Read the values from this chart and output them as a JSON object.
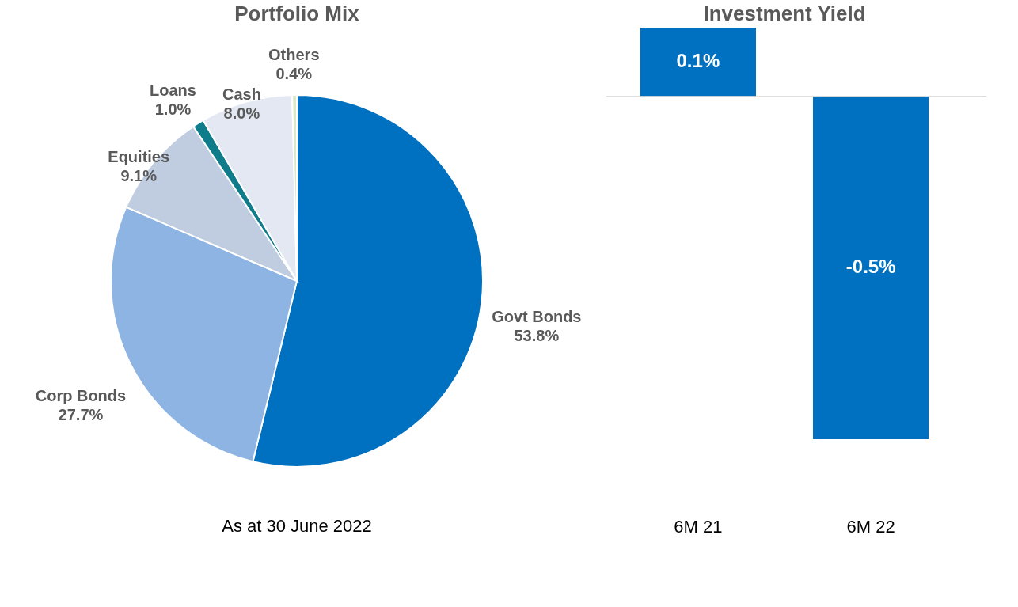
{
  "chart_data": [
    {
      "type": "pie",
      "title": "Portfolio Mix",
      "categories": [
        "Govt Bonds",
        "Corp Bonds",
        "Equities",
        "Loans",
        "Cash",
        "Others"
      ],
      "values": [
        53.8,
        27.7,
        9.1,
        1.0,
        8.0,
        0.4
      ],
      "colors": [
        "#0070c0",
        "#8eb4e3",
        "#c0cde0",
        "#0e7c8b",
        "#e3e8f2",
        "#d8e8c8"
      ],
      "value_labels": [
        "53.8%",
        "27.7%",
        "9.1%",
        "1.0%",
        "8.0%",
        "0.4%"
      ],
      "annotations": [
        "As at 30 June 2022"
      ]
    },
    {
      "type": "bar",
      "title": "Investment Yield",
      "categories": [
        "6M 21",
        "6M 22"
      ],
      "values": [
        0.1,
        -0.5
      ],
      "color": "#0070c0",
      "value_labels": [
        "0.1%",
        "-0.5%"
      ]
    }
  ]
}
